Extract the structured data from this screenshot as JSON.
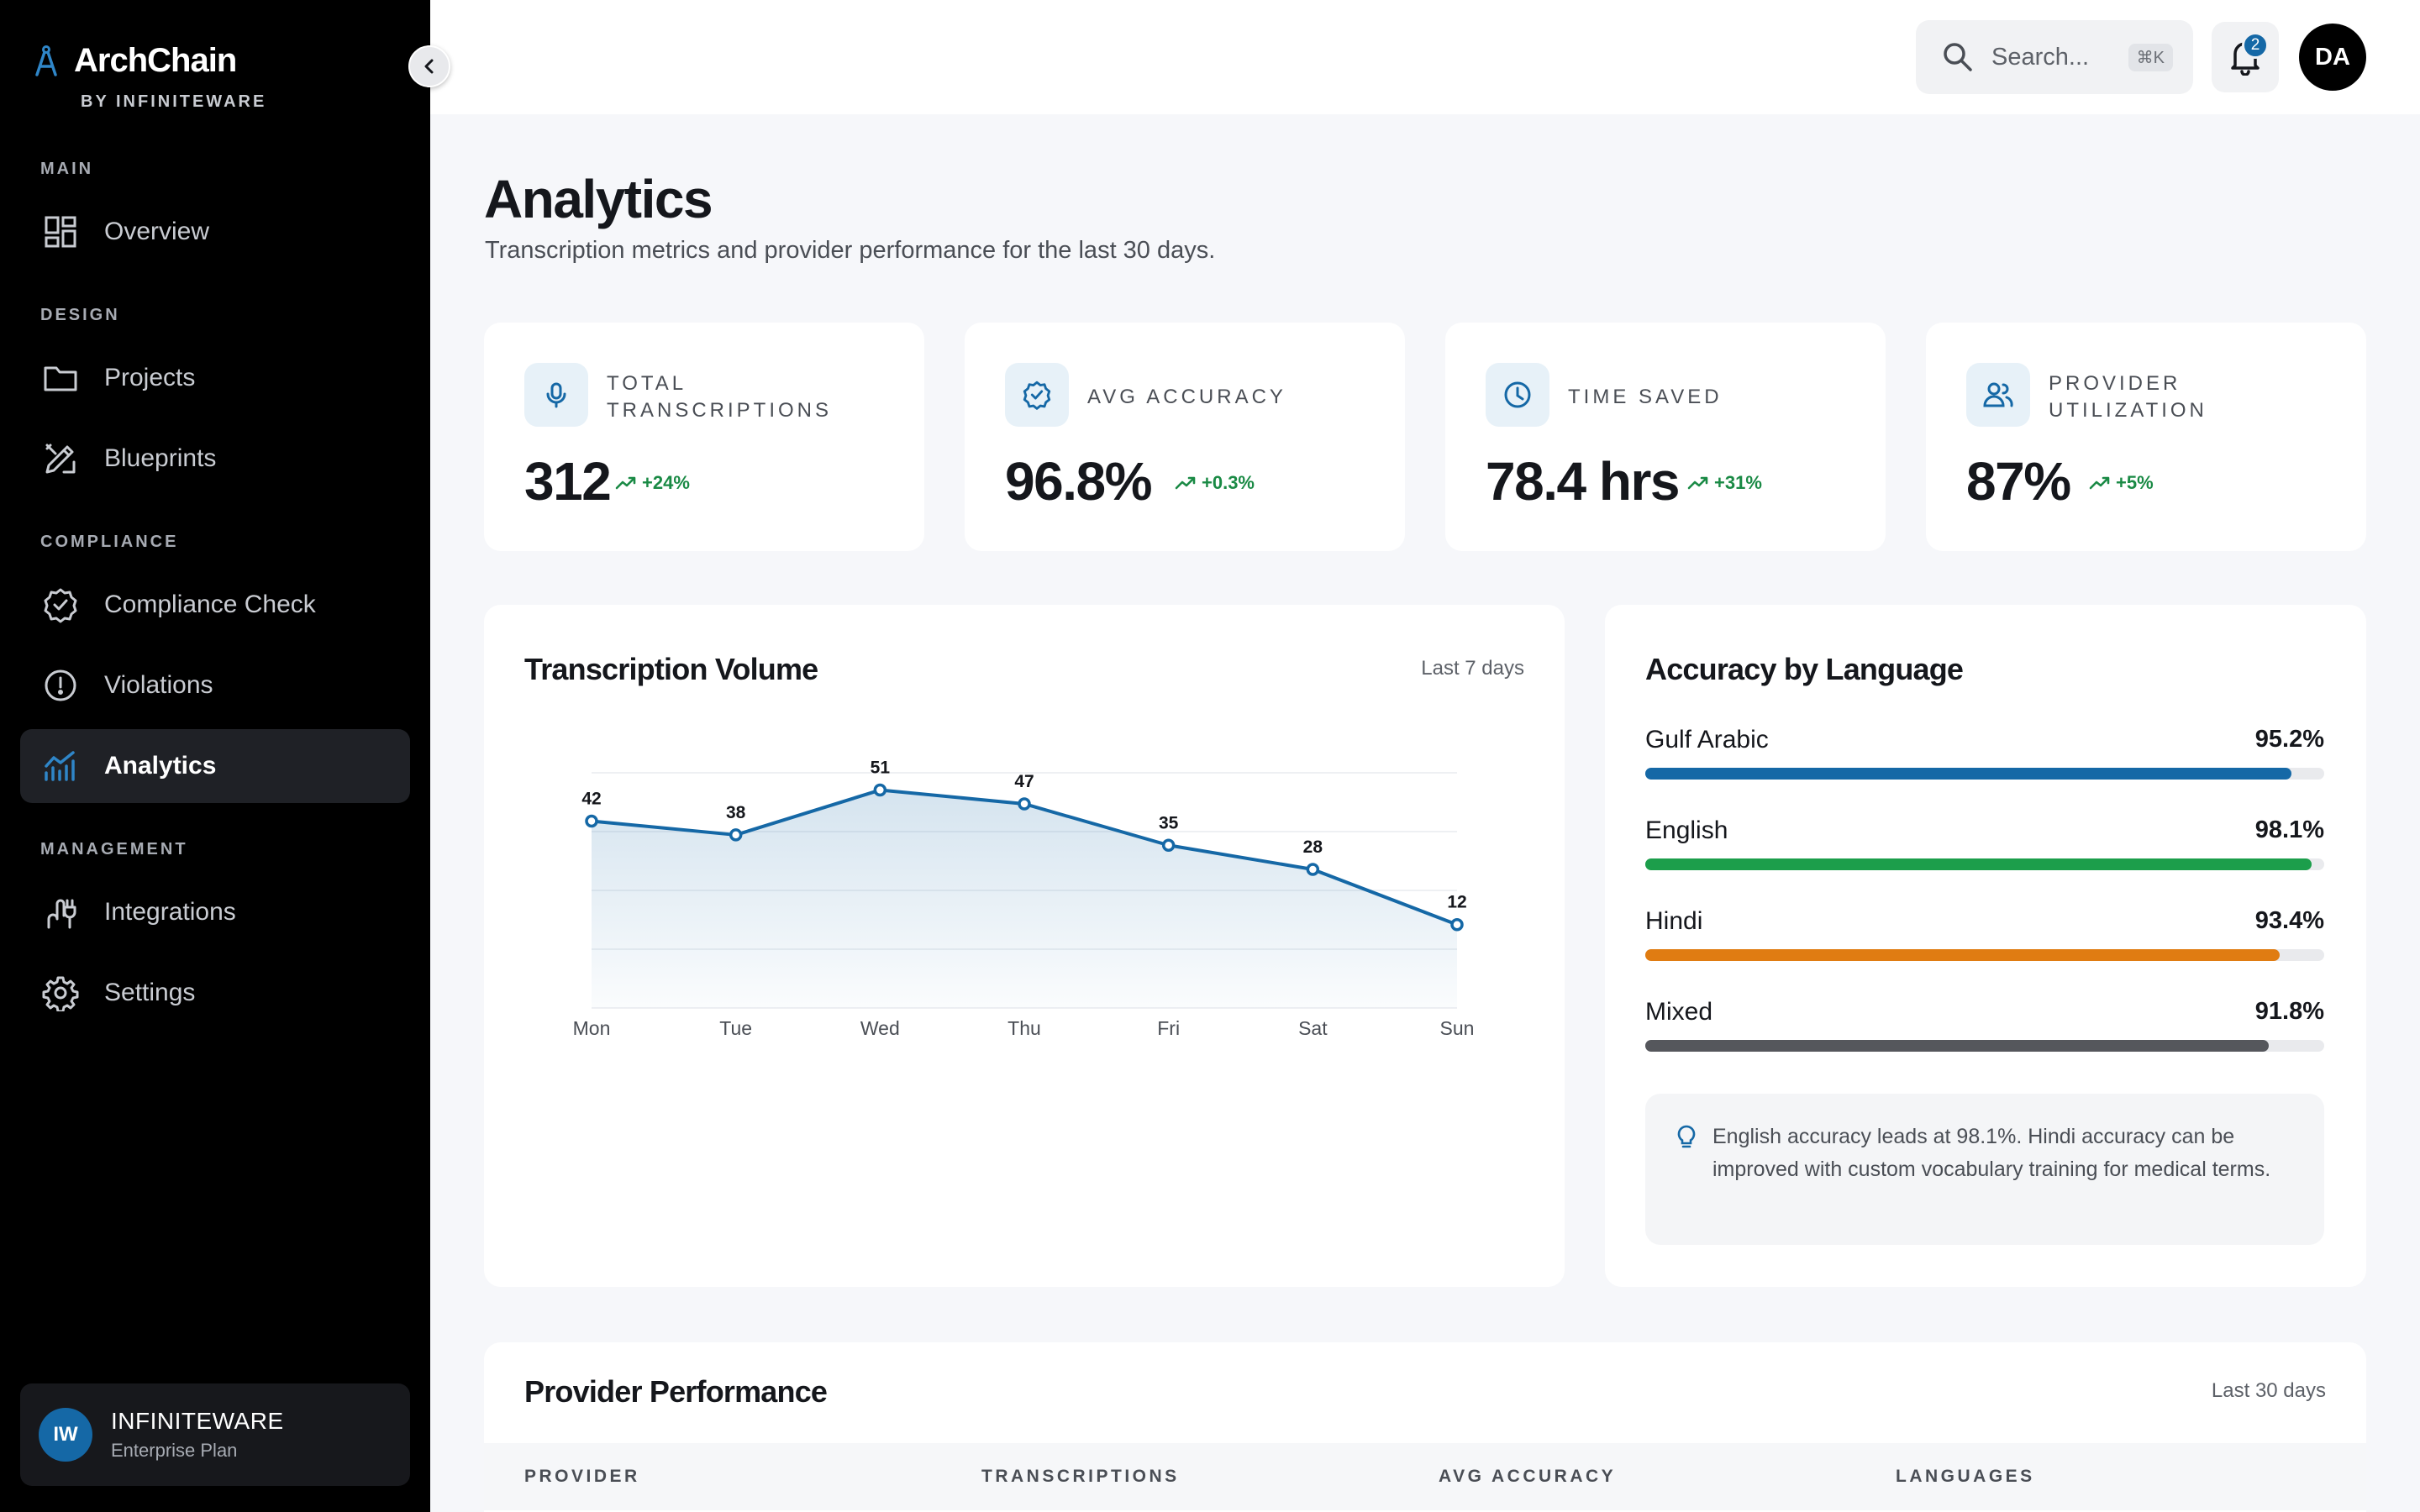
{
  "app": {
    "name": "ArchChain",
    "by": "BY INFINITEWARE"
  },
  "sidebar": {
    "sections": [
      {
        "title": "MAIN",
        "items": [
          {
            "label": "Overview",
            "icon": "grid-icon"
          }
        ]
      },
      {
        "title": "DESIGN",
        "items": [
          {
            "label": "Projects",
            "icon": "folder-icon"
          },
          {
            "label": "Blueprints",
            "icon": "pencil-ruler-icon"
          }
        ]
      },
      {
        "title": "COMPLIANCE",
        "items": [
          {
            "label": "Compliance Check",
            "icon": "badge-check-icon"
          },
          {
            "label": "Violations",
            "icon": "alert-circle-icon"
          },
          {
            "label": "Analytics",
            "icon": "chart-icon",
            "active": true
          }
        ]
      },
      {
        "title": "MANAGEMENT",
        "items": [
          {
            "label": "Integrations",
            "icon": "plug-icon"
          },
          {
            "label": "Settings",
            "icon": "gear-icon"
          }
        ]
      }
    ],
    "org": {
      "initials": "IW",
      "name": "INFINITEWARE",
      "plan": "Enterprise Plan"
    }
  },
  "topbar": {
    "search_placeholder": "Search...",
    "search_shortcut": "⌘K",
    "notification_count": "2",
    "user_initials": "DA"
  },
  "page": {
    "title": "Analytics",
    "subtitle": "Transcription metrics and provider performance for the last 30 days."
  },
  "kpis": [
    {
      "label": "TOTAL TRANSCRIPTIONS",
      "value": "312",
      "delta": "+24%",
      "icon": "microphone-icon"
    },
    {
      "label": "AVG ACCURACY",
      "value": "96.8%",
      "delta": "+0.3%",
      "icon": "badge-check-icon"
    },
    {
      "label": "TIME SAVED",
      "value": "78.4 hrs",
      "delta": "+31%",
      "icon": "clock-icon"
    },
    {
      "label": "PROVIDER UTILIZATION",
      "value": "87%",
      "delta": "+5%",
      "icon": "users-icon"
    }
  ],
  "volume_panel": {
    "title": "Transcription Volume",
    "range": "Last 7 days"
  },
  "chart_data": {
    "type": "area",
    "categories": [
      "Mon",
      "Tue",
      "Wed",
      "Thu",
      "Fri",
      "Sat",
      "Sun"
    ],
    "series": [
      {
        "values": [
          42,
          38,
          51,
          47,
          35,
          28,
          12
        ]
      }
    ],
    "ylim": [
      0,
      56
    ],
    "grid": true,
    "color": "#1568a6"
  },
  "language_panel": {
    "title": "Accuracy by Language",
    "languages": [
      {
        "name": "Gulf Arabic",
        "pct": "95.2%",
        "value": 95.2,
        "color": "#1568a6"
      },
      {
        "name": "English",
        "pct": "98.1%",
        "value": 98.1,
        "color": "#1c9e4b"
      },
      {
        "name": "Hindi",
        "pct": "93.4%",
        "value": 93.4,
        "color": "#e07c12"
      },
      {
        "name": "Mixed",
        "pct": "91.8%",
        "value": 91.8,
        "color": "#55575c"
      }
    ],
    "insight": "English accuracy leads at 98.1%. Hindi accuracy can be improved with custom vocabulary training for medical terms."
  },
  "provider_panel": {
    "title": "Provider Performance",
    "range": "Last 30 days",
    "columns": [
      "PROVIDER",
      "TRANSCRIPTIONS",
      "AVG ACCURACY",
      "LANGUAGES"
    ]
  }
}
